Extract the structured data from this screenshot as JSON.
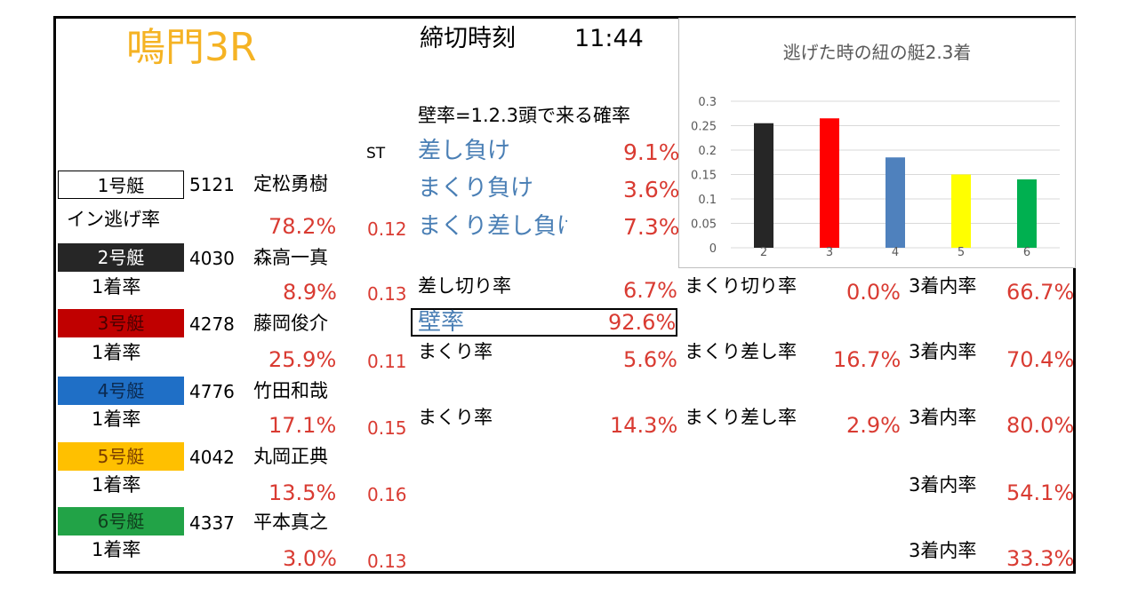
{
  "header": {
    "title": "鳴門3R",
    "deadline_label": "締切時刻",
    "deadline_time": "11:44",
    "st_header": "ST",
    "wall_definition": "壁率=1.2.3頭で来る確率"
  },
  "boats": [
    {
      "label": "1号艇",
      "color": "#ffffff",
      "reg_no": "5121",
      "name": "定松勇樹",
      "rate_label": "イン逃げ率",
      "rate": "78.2%",
      "st": "0.12"
    },
    {
      "label": "2号艇",
      "color": "#262626",
      "reg_no": "4030",
      "name": "森高一真",
      "rate_label": "1着率",
      "rate": "8.9%",
      "st": "0.13"
    },
    {
      "label": "3号艇",
      "color": "#c00000",
      "reg_no": "4278",
      "name": "藤岡俊介",
      "rate_label": "1着率",
      "rate": "25.9%",
      "st": "0.11"
    },
    {
      "label": "4号艇",
      "color": "#1f6fc6",
      "reg_no": "4776",
      "name": "竹田和哉",
      "rate_label": "1着率",
      "rate": "17.1%",
      "st": "0.15"
    },
    {
      "label": "5号艇",
      "color": "#ffc000",
      "reg_no": "4042",
      "name": "丸岡正典",
      "rate_label": "1着率",
      "rate": "13.5%",
      "st": "0.16"
    },
    {
      "label": "6号艇",
      "color": "#22a347",
      "reg_no": "4337",
      "name": "平本真之",
      "rate_label": "1着率",
      "rate": "3.0%",
      "st": "0.13"
    }
  ],
  "loss": [
    {
      "label": "差し負け",
      "value": "9.1%"
    },
    {
      "label": "まくり負け",
      "value": "3.6%"
    },
    {
      "label": "まくり差し負け",
      "value": "7.3%"
    }
  ],
  "stats": {
    "boat2_sashi_label": "差し切り率",
    "boat2_sashi_value": "6.7%",
    "boat2_makuri_label": "まくり切り率",
    "boat2_makuri_value": "0.0%",
    "boat2_top3_label": "3着内率",
    "boat2_top3_value": "66.7%",
    "wall_label": "壁率",
    "wall_value": "92.6%",
    "boat3_makuri_label": "まくり率",
    "boat3_makuri_value": "5.6%",
    "boat3_makurizashi_label": "まくり差し率",
    "boat3_makurizashi_value": "16.7%",
    "boat3_top3_label": "3着内率",
    "boat3_top3_value": "70.4%",
    "boat4_makuri_label": "まくり率",
    "boat4_makuri_value": "14.3%",
    "boat4_makurizashi_label": "まくり差し率",
    "boat4_makurizashi_value": "2.9%",
    "boat4_top3_label": "3着内率",
    "boat4_top3_value": "80.0%",
    "boat5_top3_label": "3着内率",
    "boat5_top3_value": "54.1%",
    "boat6_top3_label": "3着内率",
    "boat6_top3_value": "33.3%"
  },
  "chart_data": {
    "type": "bar",
    "title": "逃げた時の紐の艇2.3着",
    "categories": [
      "2",
      "3",
      "4",
      "5",
      "6"
    ],
    "values": [
      0.255,
      0.265,
      0.185,
      0.15,
      0.14
    ],
    "bar_colors": [
      "#262626",
      "#ff0000",
      "#4f81bd",
      "#ffff00",
      "#00b050"
    ],
    "yticks": [
      "0",
      "0.05",
      "0.1",
      "0.15",
      "0.2",
      "0.25",
      "0.3"
    ],
    "ylim": [
      0,
      0.3
    ],
    "grid": true,
    "xlabel": "",
    "ylabel": ""
  }
}
